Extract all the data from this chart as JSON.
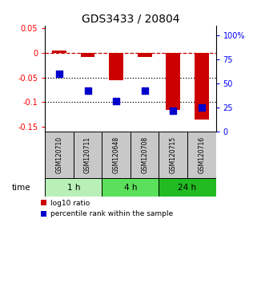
{
  "title": "GDS3433 / 20804",
  "samples": [
    "GSM120710",
    "GSM120711",
    "GSM120648",
    "GSM120708",
    "GSM120715",
    "GSM120716"
  ],
  "groups": [
    {
      "label": "1 h",
      "indices": [
        0,
        1
      ],
      "color": "#b8f0b8"
    },
    {
      "label": "4 h",
      "indices": [
        2,
        3
      ],
      "color": "#5ae05a"
    },
    {
      "label": "24 h",
      "indices": [
        4,
        5
      ],
      "color": "#22bb22"
    }
  ],
  "log10_bars": [
    0.005,
    -0.008,
    -0.055,
    -0.008,
    -0.115,
    -0.135
  ],
  "percentile_rank": [
    60,
    43,
    32,
    43,
    22,
    25
  ],
  "ylim_left": [
    -0.16,
    0.055
  ],
  "ylim_right": [
    0,
    110
  ],
  "yticks_left": [
    -0.15,
    -0.1,
    -0.05,
    0.0,
    0.05
  ],
  "yticks_right": [
    0,
    25,
    50,
    75,
    100
  ],
  "ytick_labels_left": [
    "-0.15",
    "-0.1",
    "-0.05",
    "0",
    "0.05"
  ],
  "ytick_labels_right": [
    "0",
    "25",
    "50",
    "75",
    "100%"
  ],
  "hlines": [
    -0.05,
    -0.1
  ],
  "bar_color": "#cc0000",
  "dot_color": "#0000cc",
  "dashed_line_color": "#cc0000",
  "bar_width": 0.5,
  "dot_size": 40,
  "x_positions": [
    1,
    2,
    3,
    4,
    5,
    6
  ],
  "sample_box_color": "#c8c8c8",
  "bg_color": "white"
}
